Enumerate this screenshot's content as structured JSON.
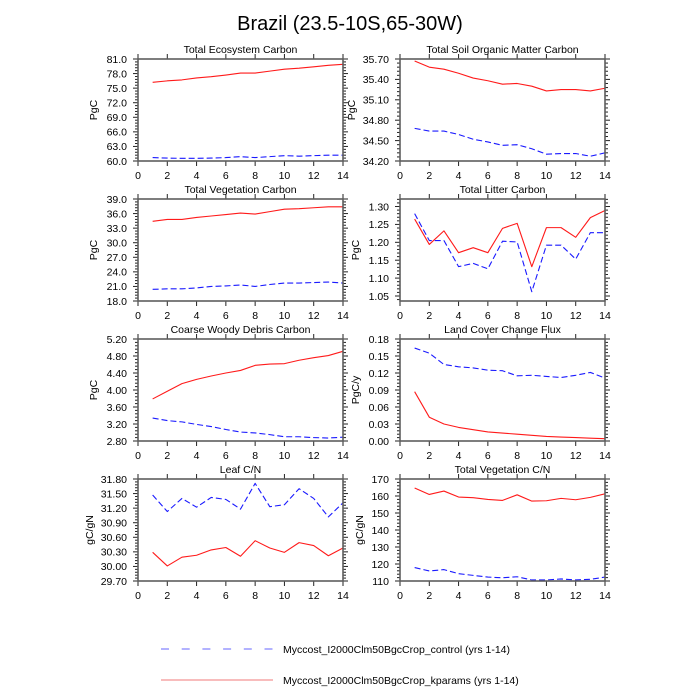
{
  "figure": {
    "title": "Brazil (23.5-10S,65-30W)"
  },
  "legend": {
    "entries": [
      {
        "label": "Myccost_I2000Clm50BgcCrop_control (yrs 1-14)",
        "color": "#6666ff",
        "plot_color": "#1a1aff",
        "style": "dashed"
      },
      {
        "label": "Myccost_I2000Clm50BgcCrop_kparams (yrs 1-14)",
        "color": "#f07878",
        "plot_color": "#ff1a1a",
        "style": "solid"
      }
    ]
  },
  "chart_data": [
    {
      "type": "line",
      "title": "Total Ecosystem Carbon",
      "ylabel": "PgC",
      "xlim": [
        0,
        14
      ],
      "ylim": [
        60.0,
        81.0
      ],
      "xticks": [
        "0",
        "2",
        "4",
        "6",
        "8",
        "10",
        "12",
        "14"
      ],
      "yticks": [
        "60.0",
        "63.0",
        "66.0",
        "69.0",
        "72.0",
        "75.0",
        "78.0",
        "81.0"
      ],
      "x": [
        1,
        2,
        3,
        4,
        5,
        6,
        7,
        8,
        9,
        10,
        11,
        12,
        13,
        14
      ],
      "series": [
        {
          "y": [
            60.7,
            60.6,
            60.55,
            60.55,
            60.6,
            60.7,
            60.9,
            60.7,
            60.9,
            61.1,
            61.0,
            61.1,
            61.2,
            61.2
          ]
        },
        {
          "y": [
            76.2,
            76.5,
            76.7,
            77.1,
            77.35,
            77.7,
            78.1,
            78.1,
            78.5,
            78.9,
            79.1,
            79.4,
            79.7,
            79.9
          ]
        }
      ]
    },
    {
      "type": "line",
      "title": "Total Soil Organic Matter Carbon",
      "ylabel": "PgC",
      "xlim": [
        0,
        14
      ],
      "ylim": [
        34.2,
        35.7
      ],
      "xticks": [
        "0",
        "2",
        "4",
        "6",
        "8",
        "10",
        "12",
        "14"
      ],
      "yticks": [
        "34.20",
        "34.50",
        "34.80",
        "35.10",
        "35.40",
        "35.70"
      ],
      "x": [
        1,
        2,
        3,
        4,
        5,
        6,
        7,
        8,
        9,
        10,
        11,
        12,
        13,
        14
      ],
      "series": [
        {
          "y": [
            34.68,
            34.64,
            34.64,
            34.59,
            34.52,
            34.48,
            34.43,
            34.44,
            34.38,
            34.3,
            34.31,
            34.31,
            34.27,
            34.32
          ]
        },
        {
          "y": [
            35.67,
            35.58,
            35.55,
            35.49,
            35.42,
            35.38,
            35.33,
            35.34,
            35.3,
            35.23,
            35.25,
            35.25,
            35.23,
            35.27
          ]
        }
      ]
    },
    {
      "type": "line",
      "title": "Total Vegetation Carbon",
      "ylabel": "PgC",
      "xlim": [
        0,
        14
      ],
      "ylim": [
        18.0,
        39.0
      ],
      "xticks": [
        "0",
        "2",
        "4",
        "6",
        "8",
        "10",
        "12",
        "14"
      ],
      "yticks": [
        "18.0",
        "21.0",
        "24.0",
        "27.0",
        "30.0",
        "33.0",
        "36.0",
        "39.0"
      ],
      "x": [
        1,
        2,
        3,
        4,
        5,
        6,
        7,
        8,
        9,
        10,
        11,
        12,
        13,
        14
      ],
      "series": [
        {
          "y": [
            20.4,
            20.5,
            20.5,
            20.7,
            21.0,
            21.1,
            21.3,
            21.0,
            21.4,
            21.7,
            21.7,
            21.8,
            21.9,
            21.7
          ]
        },
        {
          "y": [
            34.4,
            34.8,
            34.8,
            35.2,
            35.5,
            35.8,
            36.1,
            35.9,
            36.4,
            36.9,
            37.0,
            37.2,
            37.4,
            37.4
          ]
        }
      ]
    },
    {
      "type": "line",
      "title": "Total Litter Carbon",
      "ylabel": "PgC",
      "xlim": [
        0,
        14
      ],
      "ylim": [
        1.036,
        1.321
      ],
      "xticks": [
        "0",
        "2",
        "4",
        "6",
        "8",
        "10",
        "12",
        "14"
      ],
      "yticks": [
        "1.05",
        "1.10",
        "1.15",
        "1.20",
        "1.25",
        "1.30"
      ],
      "x": [
        1,
        2,
        3,
        4,
        5,
        6,
        7,
        8,
        9,
        10,
        11,
        12,
        13,
        14
      ],
      "series": [
        {
          "y": [
            1.28,
            1.205,
            1.205,
            1.132,
            1.141,
            1.126,
            1.203,
            1.201,
            1.062,
            1.192,
            1.192,
            1.153,
            1.227,
            1.227
          ]
        },
        {
          "y": [
            1.265,
            1.194,
            1.232,
            1.171,
            1.185,
            1.171,
            1.239,
            1.253,
            1.132,
            1.241,
            1.241,
            1.214,
            1.269,
            1.289
          ]
        }
      ]
    },
    {
      "type": "line",
      "title": "Coarse Woody Debris Carbon",
      "ylabel": "PgC",
      "xlim": [
        0,
        14
      ],
      "ylim": [
        2.8,
        5.2
      ],
      "xticks": [
        "0",
        "2",
        "4",
        "6",
        "8",
        "10",
        "12",
        "14"
      ],
      "yticks": [
        "2.80",
        "3.20",
        "3.60",
        "4.00",
        "4.40",
        "4.80",
        "5.20"
      ],
      "x": [
        1,
        2,
        3,
        4,
        5,
        6,
        7,
        8,
        9,
        10,
        11,
        12,
        13,
        14
      ],
      "series": [
        {
          "y": [
            3.34,
            3.28,
            3.25,
            3.19,
            3.14,
            3.07,
            3.01,
            2.99,
            2.95,
            2.9,
            2.9,
            2.88,
            2.87,
            2.89
          ]
        },
        {
          "y": [
            3.79,
            3.97,
            4.15,
            4.25,
            4.33,
            4.4,
            4.46,
            4.58,
            4.61,
            4.62,
            4.7,
            4.76,
            4.81,
            4.91
          ]
        }
      ]
    },
    {
      "type": "line",
      "title": "Land Cover Change Flux",
      "ylabel": "PgC/y",
      "xlim": [
        0,
        14
      ],
      "ylim": [
        0.0,
        0.18
      ],
      "xticks": [
        "0",
        "2",
        "4",
        "6",
        "8",
        "10",
        "12",
        "14"
      ],
      "yticks": [
        "0.00",
        "0.03",
        "0.06",
        "0.09",
        "0.12",
        "0.15",
        "0.18"
      ],
      "x": [
        1,
        2,
        3,
        4,
        5,
        6,
        7,
        8,
        9,
        10,
        11,
        12,
        13,
        14
      ],
      "series": [
        {
          "y": [
            0.164,
            0.155,
            0.135,
            0.131,
            0.129,
            0.125,
            0.124,
            0.115,
            0.116,
            0.114,
            0.112,
            0.116,
            0.121,
            0.111
          ]
        },
        {
          "y": [
            0.087,
            0.042,
            0.03,
            0.024,
            0.02,
            0.016,
            0.014,
            0.012,
            0.01,
            0.008,
            0.007,
            0.006,
            0.005,
            0.004
          ]
        }
      ]
    },
    {
      "type": "line",
      "title": "Leaf C/N",
      "ylabel": "gC/gN",
      "xlim": [
        0,
        14
      ],
      "ylim": [
        29.7,
        31.8
      ],
      "xticks": [
        "0",
        "2",
        "4",
        "6",
        "8",
        "10",
        "12",
        "14"
      ],
      "yticks": [
        "29.70",
        "30.00",
        "30.30",
        "30.60",
        "30.90",
        "31.20",
        "31.50",
        "31.80"
      ],
      "x": [
        1,
        2,
        3,
        4,
        5,
        6,
        7,
        8,
        9,
        10,
        11,
        12,
        13,
        14
      ],
      "series": [
        {
          "y": [
            31.47,
            31.13,
            31.4,
            31.22,
            31.42,
            31.38,
            31.18,
            31.71,
            31.23,
            31.27,
            31.6,
            31.4,
            31.02,
            31.31
          ]
        },
        {
          "y": [
            30.29,
            30.01,
            30.19,
            30.23,
            30.34,
            30.39,
            30.21,
            30.53,
            30.38,
            30.29,
            30.49,
            30.43,
            30.22,
            30.38
          ]
        }
      ]
    },
    {
      "type": "line",
      "title": "Total Vegetation C/N",
      "ylabel": "gC/gN",
      "xlim": [
        0,
        14
      ],
      "ylim": [
        110,
        170
      ],
      "xticks": [
        "0",
        "2",
        "4",
        "6",
        "8",
        "10",
        "12",
        "14"
      ],
      "yticks": [
        "110",
        "120",
        "130",
        "140",
        "150",
        "160",
        "170"
      ],
      "x": [
        1,
        2,
        3,
        4,
        5,
        6,
        7,
        8,
        9,
        10,
        11,
        12,
        13,
        14
      ],
      "series": [
        {
          "y": [
            117.9,
            115.9,
            116.7,
            114.3,
            113.3,
            112.3,
            111.9,
            112.5,
            110.6,
            110.6,
            111.2,
            110.6,
            111.0,
            112.3
          ]
        },
        {
          "y": [
            164.7,
            160.9,
            162.9,
            159.4,
            159.0,
            158.0,
            157.4,
            160.7,
            157.0,
            157.2,
            158.6,
            157.8,
            159.2,
            161.3
          ]
        }
      ]
    }
  ]
}
